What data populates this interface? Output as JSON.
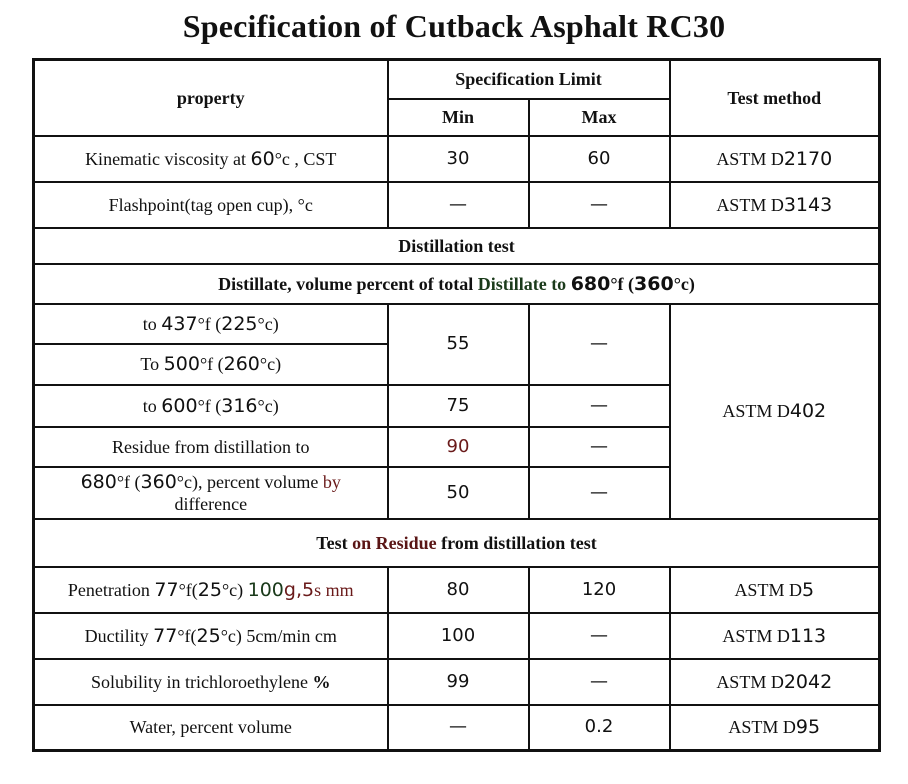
{
  "title": "Specification of Cutback Asphalt RC30",
  "header": {
    "property": "property",
    "spec_limit": "Specification Limit",
    "test_method": "Test method",
    "min": "Min",
    "max": "Max"
  },
  "rows": {
    "kinematic": {
      "property_a": "Kinematic viscosity at ",
      "property_b": "60",
      "property_c": "°c , CST",
      "min": "30",
      "max": "60",
      "method_a": "ASTM D",
      "method_b": "2170"
    },
    "flashpoint": {
      "property": "Flashpoint(tag open cup), °c",
      "min": "—",
      "max": "—",
      "method_a": "ASTM D",
      "method_b": "3143"
    }
  },
  "distillation_title": "Distillation test",
  "distillate_heading": {
    "a": "Distillate, volume percent of total ",
    "b": "Distillate to ",
    "c": "680",
    "d": "°f (",
    "e": "360",
    "f": "°c)"
  },
  "distillation_rows": {
    "r437": {
      "a": "to ",
      "b": "437",
      "c": "°f (",
      "d": "225",
      "e": "°c)"
    },
    "r500": {
      "a": "To ",
      "b": "500",
      "c": "°f (",
      "d": "260",
      "e": "°c)"
    },
    "r600": {
      "a": "to ",
      "b": "600",
      "c": "°f (",
      "d": "316",
      "e": "°c)"
    },
    "min_437_500": "55",
    "max_437_500": "—",
    "min_600": "75",
    "max_600": "—",
    "residue": "Residue from distillation to",
    "residue_min": "90",
    "residue_max": "—",
    "r680": {
      "a": "680",
      "b": "°f (",
      "c": "360",
      "d": "°c), percent volume ",
      "e": "by",
      "f": "difference"
    },
    "r680_min": "50",
    "r680_max": "—",
    "method_a": "ASTM D",
    "method_b": "402"
  },
  "residue_test_title": {
    "a": "Test ",
    "b": "on Residue",
    "c": " from distillation test"
  },
  "residue_rows": {
    "penetration": {
      "a": "Penetration ",
      "b": "77",
      "c": "°f(",
      "d": "25",
      "e": "°c) ",
      "f": "100",
      "g": "g,",
      "h": "5",
      "i": "s mm",
      "min": "80",
      "max": "120",
      "method_a": "ASTM D",
      "method_b": "5"
    },
    "ductility": {
      "a": "Ductility ",
      "b": "77",
      "c": "°f(",
      "d": "25",
      "e": "°c) 5cm/min cm",
      "min": "100",
      "max": "—",
      "method_a": "ASTM D",
      "method_b": "113"
    },
    "solubility": {
      "a": "Solubility in trichloroethylene ",
      "b": "%",
      "min": "99",
      "max": "—",
      "method_a": "ASTM D",
      "method_b": "2042"
    },
    "water": {
      "property": "Water, percent volume",
      "min": "—",
      "max": "0.2",
      "method_a": "ASTM D",
      "method_b": "95"
    }
  }
}
